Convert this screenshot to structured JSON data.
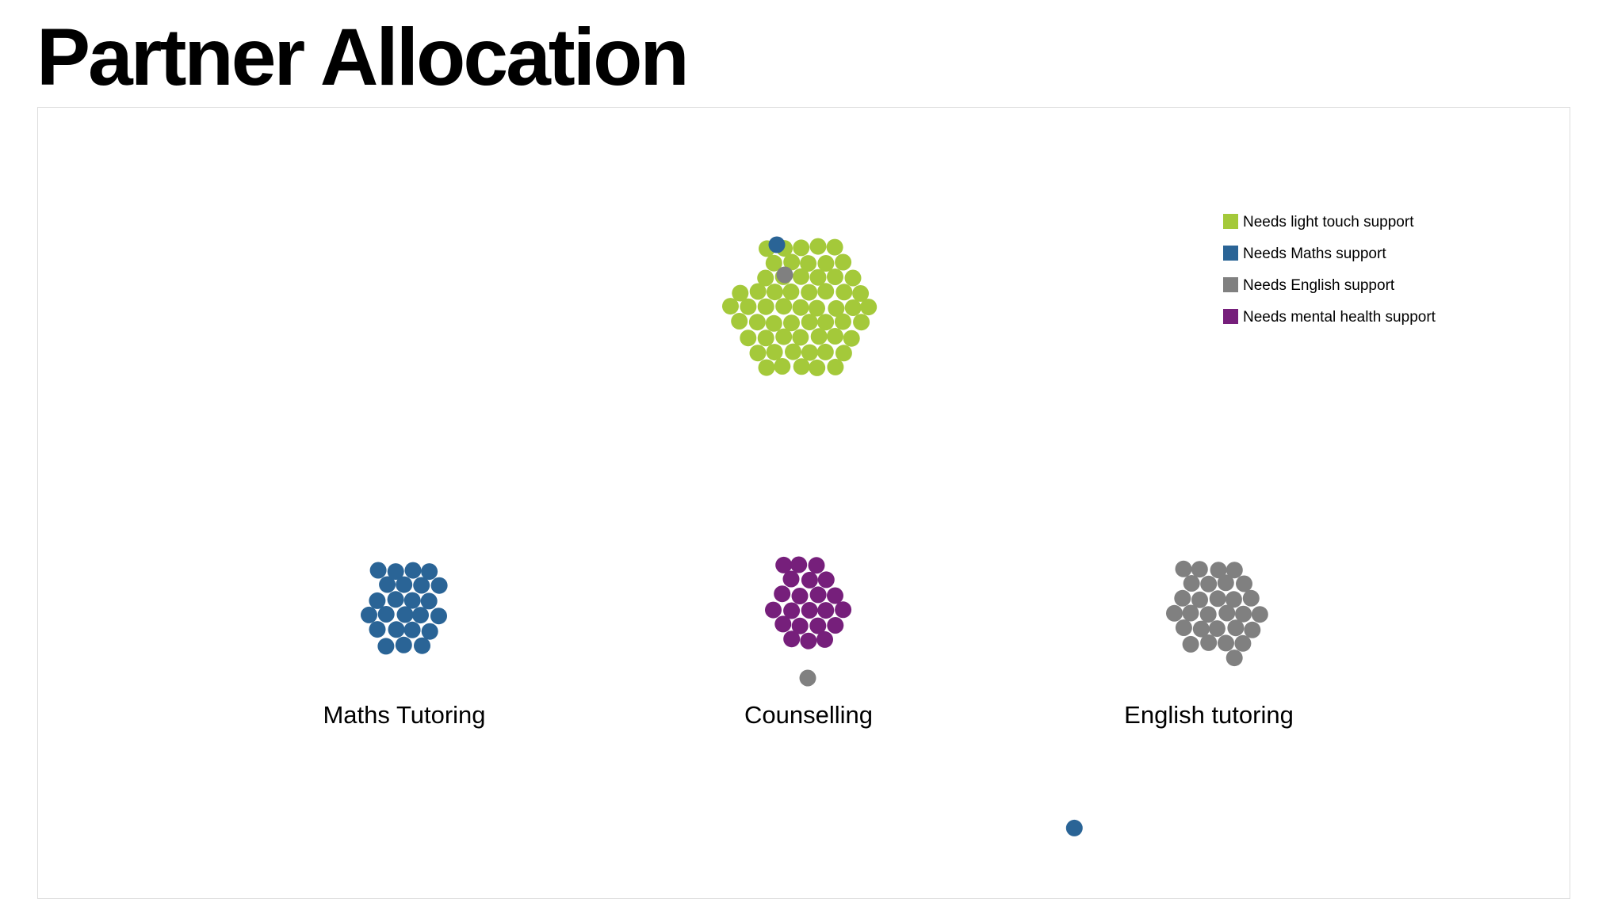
{
  "page": {
    "title": "Partner Allocation"
  },
  "chart_data": {
    "type": "scatter",
    "subtype": "force-directed bubble clusters",
    "title": "Partner Allocation",
    "legend_position": "top-right",
    "categories": [
      {
        "key": "light",
        "label": "Needs light touch support",
        "color": "#a4c93a"
      },
      {
        "key": "maths",
        "label": "Needs Maths support",
        "color": "#2a6496"
      },
      {
        "key": "english",
        "label": "Needs English support",
        "color": "#808080"
      },
      {
        "key": "mental",
        "label": "Needs mental health support",
        "color": "#761f7b"
      }
    ],
    "groups": [
      {
        "key": "unassigned",
        "label": "",
        "counts": {
          "light": 59,
          "maths": 1,
          "english": 1,
          "mental": 0
        }
      },
      {
        "key": "maths_tutoring",
        "label": "Maths Tutoring",
        "counts": {
          "light": 0,
          "maths": 24,
          "english": 0,
          "mental": 0
        }
      },
      {
        "key": "counselling",
        "label": "Counselling",
        "counts": {
          "light": 0,
          "maths": 0,
          "english": 1,
          "mental": 22
        }
      },
      {
        "key": "english_tutoring",
        "label": "English tutoring",
        "counts": {
          "light": 0,
          "maths": 0,
          "english": 29,
          "mental": 0
        }
      },
      {
        "key": "stray",
        "label": "",
        "counts": {
          "light": 0,
          "maths": 1,
          "english": 0,
          "mental": 0
        }
      }
    ]
  }
}
